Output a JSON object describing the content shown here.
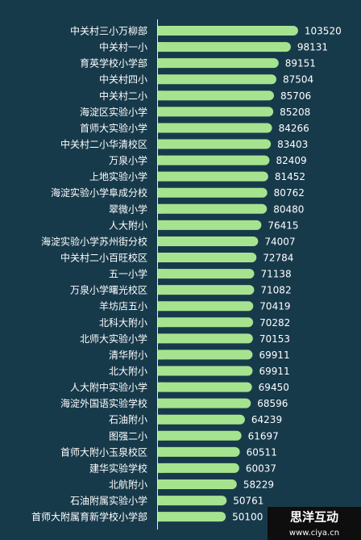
{
  "chart_data": {
    "type": "bar",
    "orientation": "horizontal",
    "categories": [
      "中关村三小万柳部",
      "中关村一小",
      "育英学校小学部",
      "中关村四小",
      "中关村二小",
      "海淀区实验小学",
      "首师大实验小学",
      "中关村二小华清校区",
      "万泉小学",
      "上地实验小学",
      "海淀实验小学阜成分校",
      "翠微小学",
      "人大附小",
      "海淀实验小学苏州街分校",
      "中关村二小百旺校区",
      "五一小学",
      "万泉小学曙光校区",
      "羊坊店五小",
      "北科大附小",
      "北师大实验小学",
      "清华附小",
      "北大附小",
      "人大附中实验小学",
      "海淀外国语实验学校",
      "石油附小",
      "图强二小",
      "首师大附小玉泉校区",
      "建华实验学校",
      "北航附小",
      "石油附属实验小学",
      "首师大附属育新学校小学部"
    ],
    "values": [
      103520,
      98131,
      89151,
      87504,
      85706,
      85208,
      84266,
      83403,
      82409,
      81452,
      80762,
      80480,
      76415,
      74007,
      72784,
      71138,
      71082,
      70419,
      70282,
      70153,
      69911,
      69911,
      69450,
      68596,
      64239,
      61697,
      60511,
      60037,
      58229,
      50761,
      50100
    ],
    "color": "#a6e38f",
    "xlim": [
      0,
      150000
    ]
  },
  "watermark": {
    "title": "思洋互动",
    "url": "www.ciya.cn"
  }
}
